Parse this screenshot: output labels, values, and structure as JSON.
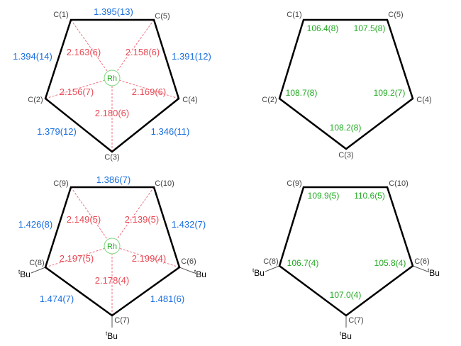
{
  "colors": {
    "bond_length": "#1a6fe0",
    "rh_distance": "#e84a55",
    "angle": "#22aa22",
    "metal": "#22aa22"
  },
  "metal": "Rh",
  "substituent": "Bu",
  "substituent_prefix": "t",
  "ring1": {
    "atoms": [
      "C(1)",
      "C(5)",
      "C(4)",
      "C(3)",
      "C(2)"
    ],
    "bonds": [
      "1.395(13)",
      "1.391(12)",
      "1.346(11)",
      "1.379(12)",
      "1.394(14)"
    ],
    "rh_distances": [
      "2.163(6)",
      "2.158(6)",
      "2.169(6)",
      "2.180(6)",
      "2.156(7)"
    ],
    "angles": [
      "106.4(8)",
      "107.5(8)",
      "109.2(7)",
      "108.2(8)",
      "108.7(8)"
    ]
  },
  "ring2": {
    "atoms": [
      "C(9)",
      "C(10)",
      "C(6)",
      "C(7)",
      "C(8)"
    ],
    "bonds": [
      "1.386(7)",
      "1.432(7)",
      "1.481(6)",
      "1.474(7)",
      "1.426(8)"
    ],
    "rh_distances": [
      "2.149(5)",
      "2.139(5)",
      "2.199(4)",
      "2.178(4)",
      "2.197(5)"
    ],
    "angles": [
      "109.9(5)",
      "110.6(5)",
      "105.8(4)",
      "107.0(4)",
      "106.7(4)"
    ]
  }
}
